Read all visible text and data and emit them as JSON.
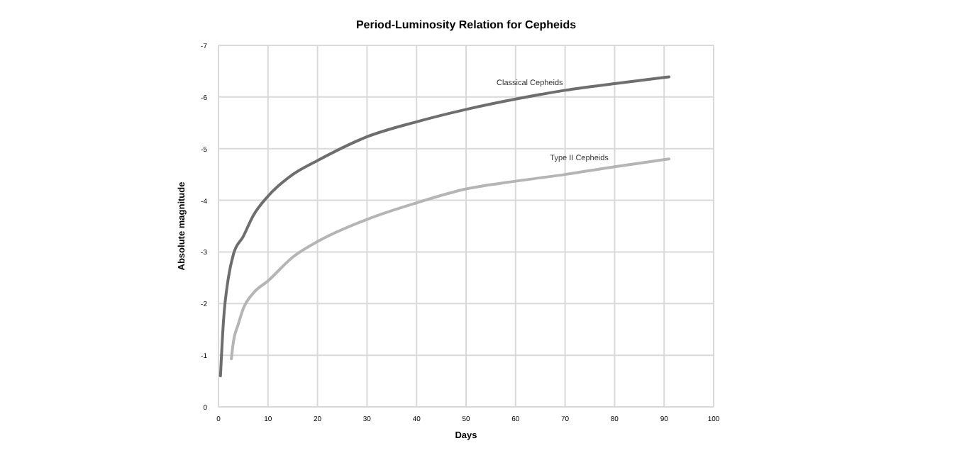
{
  "chart_data": {
    "type": "line",
    "title": "Period-Luminosity Relation for Cepheids",
    "xlabel": "Days",
    "ylabel": "Absolute magnitude",
    "xlim": [
      0,
      100
    ],
    "xticks": [
      0,
      10,
      20,
      30,
      40,
      50,
      60,
      70,
      80,
      90,
      100
    ],
    "ylim": [
      0,
      -7
    ],
    "yticks": [
      0,
      -1,
      -2,
      -3,
      -4,
      -5,
      -6,
      -7
    ],
    "grid": true,
    "marker": "none",
    "line_style": "solid",
    "series": [
      {
        "name": "Classical Cepheids",
        "color": "#6e6e6e",
        "x": [
          0.4,
          1,
          2,
          3,
          5,
          7,
          10,
          15,
          20,
          30,
          40,
          50,
          60,
          70,
          80,
          91
        ],
        "values": [
          -0.6,
          -1.65,
          -2.5,
          -2.95,
          -3.3,
          -3.7,
          -4.08,
          -4.5,
          -4.77,
          -5.23,
          -5.52,
          -5.76,
          -5.96,
          -6.13,
          -6.26,
          -6.39
        ]
      },
      {
        "name": "Type II Cepheids",
        "color": "#b5b5b5",
        "x": [
          2.6,
          3,
          4,
          5,
          7,
          10,
          15,
          20,
          30,
          40,
          50,
          60,
          70,
          80,
          91
        ],
        "values": [
          -0.93,
          -1.25,
          -1.6,
          -1.9,
          -2.2,
          -2.44,
          -2.9,
          -3.2,
          -3.63,
          -3.95,
          -4.22,
          -4.37,
          -4.5,
          -4.65,
          -4.8
        ]
      }
    ]
  }
}
